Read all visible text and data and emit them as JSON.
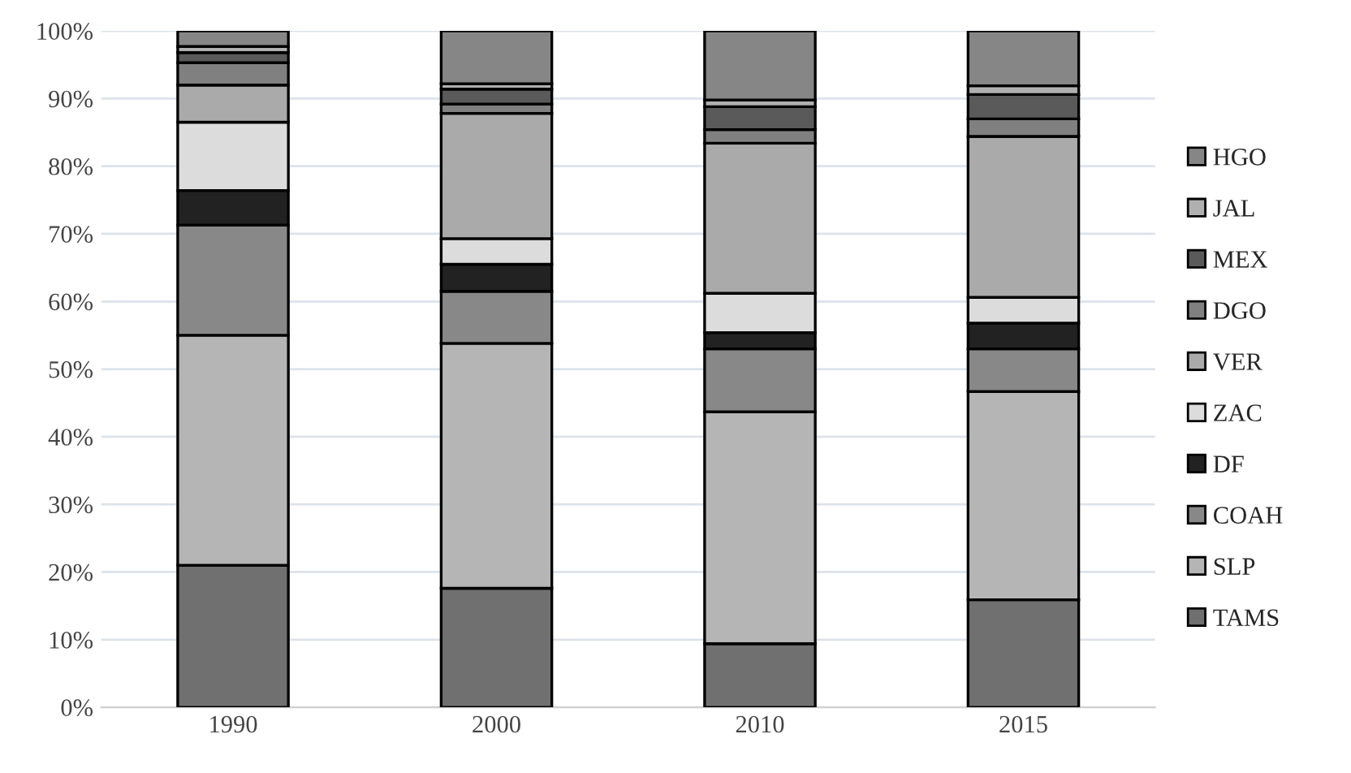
{
  "chart_data": {
    "type": "bar",
    "stacked": true,
    "categories": [
      "1990",
      "2000",
      "2010",
      "2015"
    ],
    "series": [
      {
        "name": "TAMS",
        "color": "#707070",
        "values": [
          21,
          17.6,
          9.4,
          15.9
        ]
      },
      {
        "name": "SLP",
        "color": "#b5b5b5",
        "values": [
          34,
          36.2,
          34.3,
          30.8
        ]
      },
      {
        "name": "COAH",
        "color": "#888888",
        "values": [
          16.3,
          7.7,
          9.3,
          6.3
        ]
      },
      {
        "name": "DF",
        "color": "#222222",
        "values": [
          5.1,
          4.0,
          2.4,
          3.8
        ]
      },
      {
        "name": "ZAC",
        "color": "#dcdcdc",
        "values": [
          10.1,
          3.8,
          5.8,
          3.8
        ]
      },
      {
        "name": "VER",
        "color": "#aaaaaa",
        "values": [
          5.5,
          18.5,
          22.2,
          23.8
        ]
      },
      {
        "name": "DGO",
        "color": "#808080",
        "values": [
          3.3,
          1.4,
          2.0,
          2.6
        ]
      },
      {
        "name": "MEX",
        "color": "#5a5a5a",
        "values": [
          1.5,
          2.2,
          3.4,
          3.6
        ]
      },
      {
        "name": "JAL",
        "color": "#b0b0b0",
        "values": [
          0.9,
          0.8,
          1.0,
          1.3
        ]
      },
      {
        "name": "HGO",
        "color": "#868686",
        "values": [
          2.3,
          7.8,
          10.2,
          8.1
        ]
      }
    ],
    "ylim": [
      0,
      100
    ],
    "yticks": [
      {
        "value": 0,
        "label": "0%"
      },
      {
        "value": 10,
        "label": "10%"
      },
      {
        "value": 20,
        "label": "20%"
      },
      {
        "value": 30,
        "label": "30%"
      },
      {
        "value": 40,
        "label": "40%"
      },
      {
        "value": 50,
        "label": "50%"
      },
      {
        "value": 60,
        "label": "60%"
      },
      {
        "value": 70,
        "label": "70%"
      },
      {
        "value": 80,
        "label": "80%"
      },
      {
        "value": 90,
        "label": "90%"
      },
      {
        "value": 100,
        "label": "100%"
      }
    ],
    "grid": "y",
    "legend": "right"
  }
}
